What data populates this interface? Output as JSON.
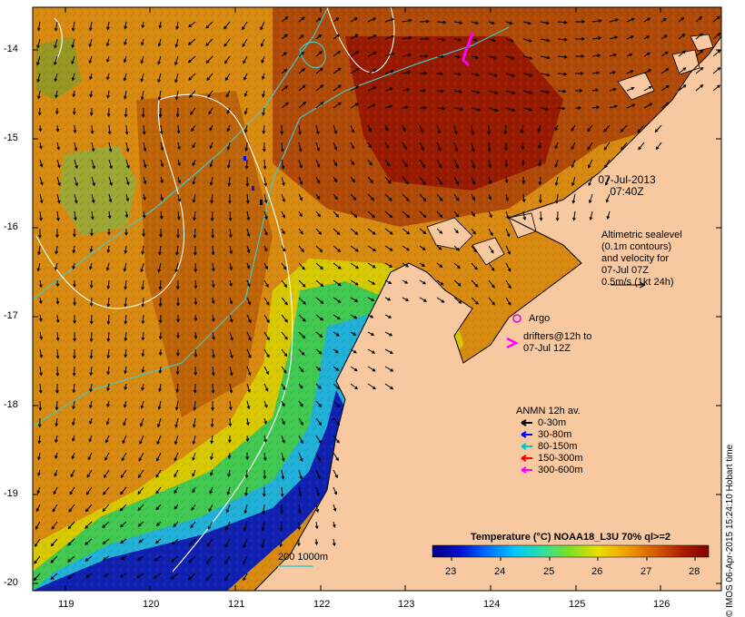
{
  "header": {
    "date": "07-Jul-2013",
    "time": "07:40Z"
  },
  "altimetry": {
    "lines": [
      "Altimetric sealevel",
      "(0.1m contours)",
      "and velocity for",
      "07-Jul 07Z",
      "0.5m/s (1kt 24h)"
    ]
  },
  "argo": {
    "label": "Argo",
    "color": "#e000e0"
  },
  "drifters": {
    "lines": [
      "drifters@12h to",
      "07-Jul 12Z"
    ],
    "color": "#ff00ff"
  },
  "anmn": {
    "title": "ANMN 12h av.",
    "items": [
      {
        "label": "0-30m",
        "color": "#000000"
      },
      {
        "label": "30-80m",
        "color": "#0000ff"
      },
      {
        "label": "80-150m",
        "color": "#00c8c8"
      },
      {
        "label": "150-300m",
        "color": "#ff0000"
      },
      {
        "label": "300-600m",
        "color": "#ff00ff"
      }
    ]
  },
  "isobath": {
    "label": "200  1000m",
    "color": "#40c8c8"
  },
  "colorbar": {
    "title": "Temperature (°C) NOAA18_L3U 70% ql>=2",
    "ticks": [
      "23",
      "24",
      "25",
      "26",
      "27",
      "28"
    ]
  },
  "axes": {
    "lat_ticks": [
      "-14",
      "-15",
      "-16",
      "-17",
      "-18",
      "-19",
      "-20"
    ],
    "lon_ticks": [
      "119",
      "120",
      "121",
      "122",
      "123",
      "124",
      "125",
      "126"
    ]
  },
  "credit": "© IMOS 06-Apr-2015 15:24:10 Hobart time"
}
